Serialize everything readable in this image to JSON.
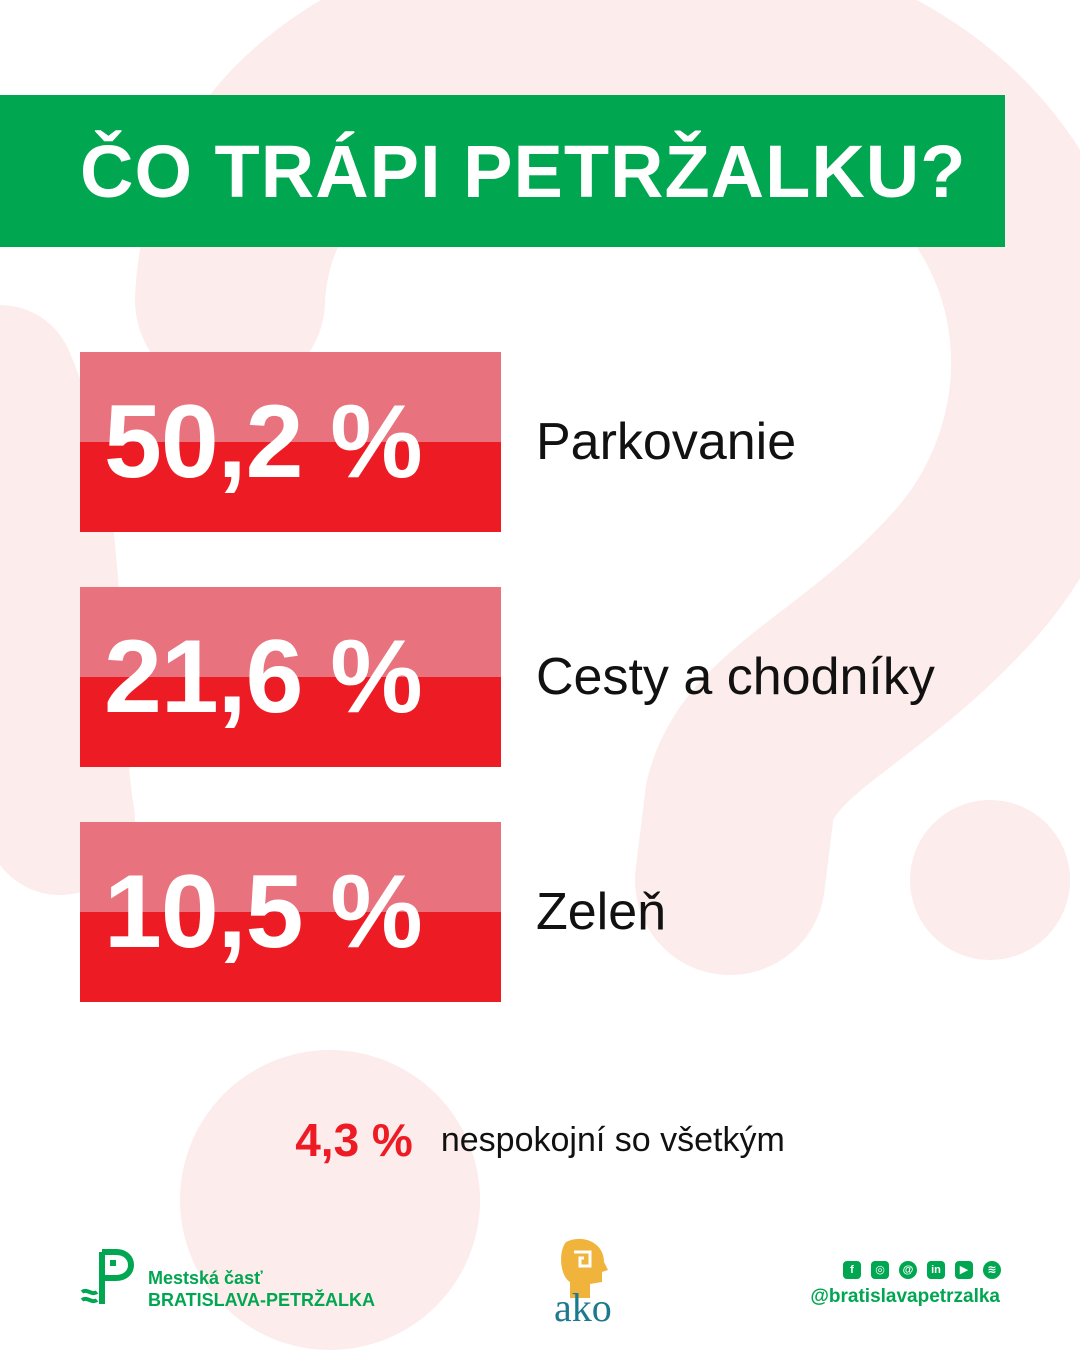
{
  "title": "ČO TRÁPI PETRŽALKU?",
  "stats": [
    {
      "value": "50,2 %",
      "label": "Parkovanie"
    },
    {
      "value": "21,6 %",
      "label": "Cesty a chodníky"
    },
    {
      "value": "10,5 %",
      "label": "Zeleň"
    }
  ],
  "summary": {
    "value": "4,3 %",
    "text": "nespokojní so všetkým"
  },
  "footer": {
    "municipality_line1": "Mestská časť",
    "municipality_line2": "BRATISLAVA-PETRŽALKA",
    "partner_logo_text": "ako",
    "social_icons": [
      "facebook-icon",
      "instagram-icon",
      "threads-icon",
      "linkedin-icon",
      "youtube-icon",
      "spotify-icon"
    ],
    "handle": "@bratislavapetrzalka"
  },
  "colors": {
    "green": "#00a650",
    "red": "#ed1c24",
    "light_red": "#e8737e",
    "background_mark": "#fcecec",
    "ako_teal": "#1c7a8c",
    "ako_yellow": "#f0b43c"
  }
}
